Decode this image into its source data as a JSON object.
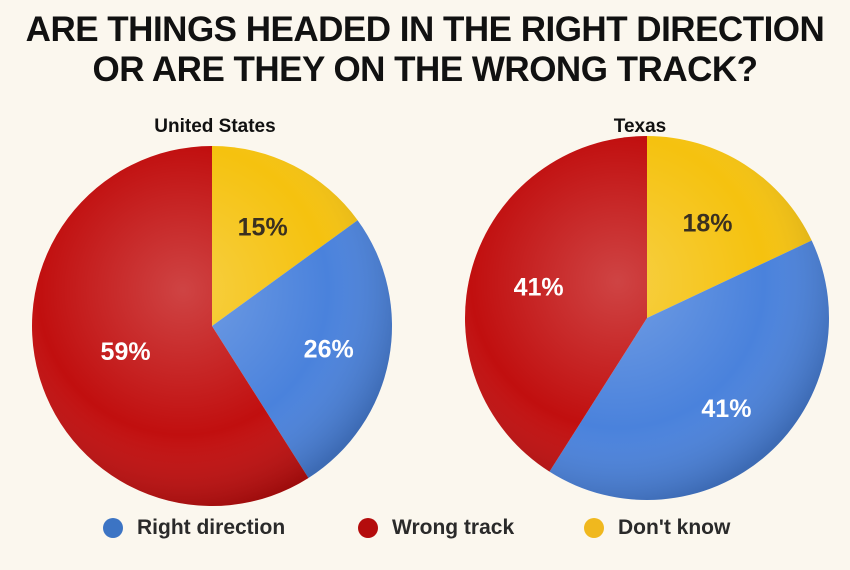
{
  "title_lines": [
    "ARE THINGS HEADED IN THE RIGHT DIRECTION",
    "OR ARE THEY ON THE WRONG TRACK?"
  ],
  "chart_data": [
    {
      "type": "pie",
      "title": "United States",
      "slices": [
        {
          "name": "Don't know",
          "value": 15,
          "label": "15%"
        },
        {
          "name": "Right direction",
          "value": 26,
          "label": "26%"
        },
        {
          "name": "Wrong track",
          "value": 59,
          "label": "59%"
        }
      ]
    },
    {
      "type": "pie",
      "title": "Texas",
      "slices": [
        {
          "name": "Don't know",
          "value": 18,
          "label": "18%"
        },
        {
          "name": "Right direction",
          "value": 41,
          "label": "41%"
        },
        {
          "name": "Wrong track",
          "value": 41,
          "label": "41%"
        }
      ]
    }
  ],
  "legend": [
    {
      "label": "Right direction",
      "color": "#3c74c4"
    },
    {
      "label": "Wrong track",
      "color": "#b40c0c"
    },
    {
      "label": "Don't know",
      "color": "#f0b81e"
    }
  ],
  "colors": {
    "Right direction": "#4a82dc",
    "Wrong track": "#c10f0f",
    "Don't know": "#f5c20f"
  },
  "label_colors": {
    "Right direction": "#ffffff",
    "Wrong track": "#ffffff",
    "Don't know": "#3a3020"
  }
}
